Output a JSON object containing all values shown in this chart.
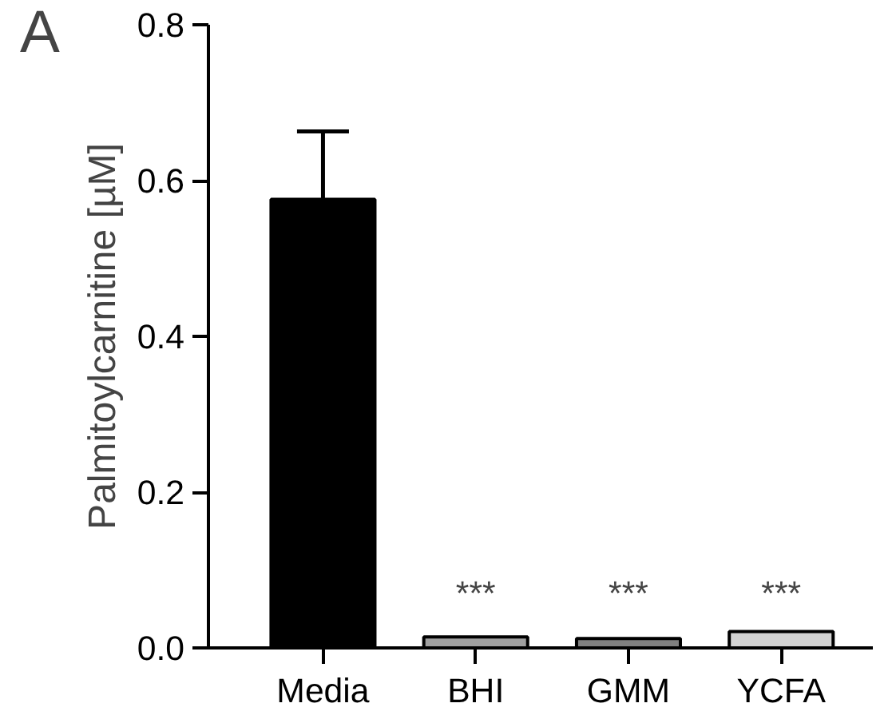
{
  "chart_data": {
    "type": "bar",
    "ylabel": "Palmitoylcarnitine [µM]",
    "categories": [
      "Media",
      "BHI",
      "GMM",
      "YCFA"
    ],
    "values": [
      0.576,
      0.014,
      0.012,
      0.021
    ],
    "colors": [
      "#000000",
      "#a0a0a0",
      "#808080",
      "#d4d4d4"
    ],
    "errors": [
      [
        0.576,
        0.663
      ],
      null,
      null,
      null
    ],
    "ylim": [
      0,
      0.8
    ],
    "yticks": [
      {
        "value": 0,
        "label": "0.0"
      },
      0.2,
      0.4,
      0.6,
      0.8
    ],
    "annotations": [
      "A",
      "***",
      "***",
      "***"
    ],
    "grid": false
  }
}
